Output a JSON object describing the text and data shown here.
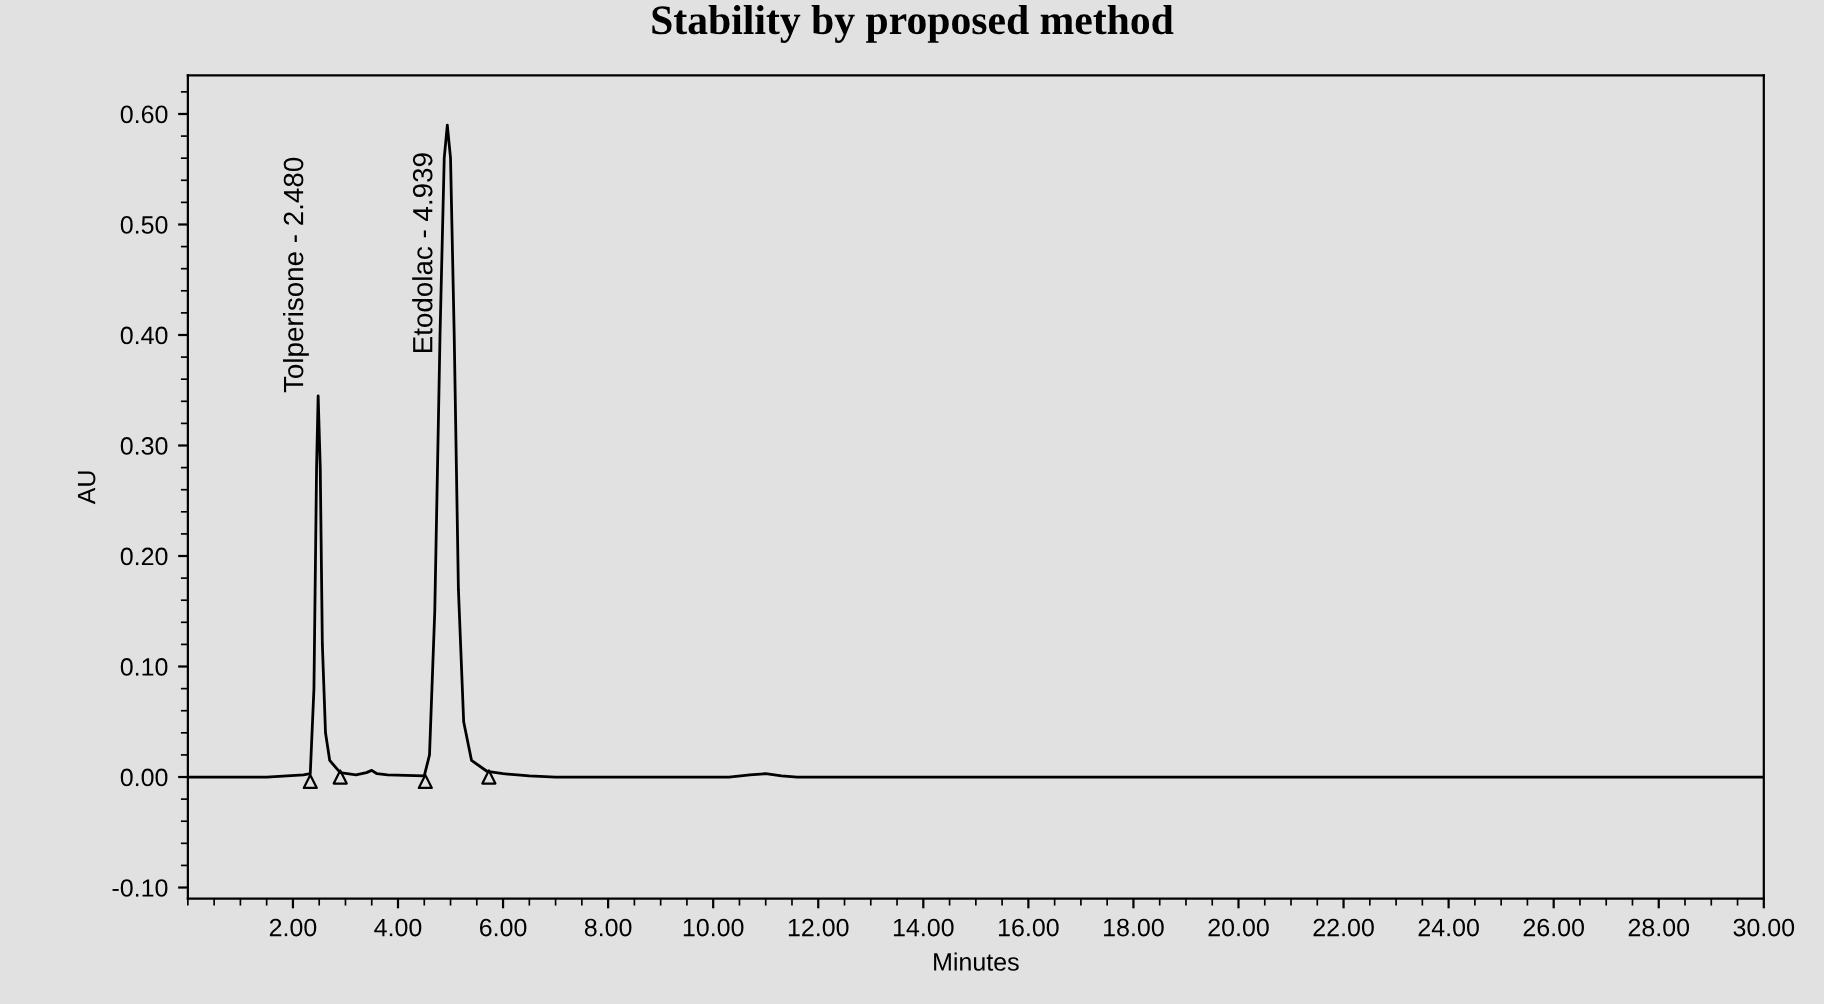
{
  "chart_data": {
    "type": "line",
    "title": "Stability by proposed method",
    "xlabel": "Minutes",
    "ylabel": "AU",
    "xlim": [
      0,
      30
    ],
    "ylim": [
      -0.11,
      0.635
    ],
    "xticks": [
      {
        "value": 2,
        "label": "2.00"
      },
      {
        "value": 4,
        "label": "4.00"
      },
      {
        "value": 6,
        "label": "6.00"
      },
      {
        "value": 8,
        "label": "8.00"
      },
      {
        "value": 10,
        "label": "10.00"
      },
      {
        "value": 12,
        "label": "12.00"
      },
      {
        "value": 14,
        "label": "14.00"
      },
      {
        "value": 16,
        "label": "16.00"
      },
      {
        "value": 18,
        "label": "18.00"
      },
      {
        "value": 20,
        "label": "20.00"
      },
      {
        "value": 22,
        "label": "22.00"
      },
      {
        "value": 24,
        "label": "24.00"
      },
      {
        "value": 26,
        "label": "26.00"
      },
      {
        "value": 28,
        "label": "28.00"
      },
      {
        "value": 30,
        "label": "30.00"
      }
    ],
    "yticks": [
      {
        "value": -0.1,
        "label": "-0.10"
      },
      {
        "value": 0,
        "label": "0.00"
      },
      {
        "value": 0.1,
        "label": "0.10"
      },
      {
        "value": 0.2,
        "label": "0.20"
      },
      {
        "value": 0.3,
        "label": "0.30"
      },
      {
        "value": 0.4,
        "label": "0.40"
      },
      {
        "value": 0.5,
        "label": "0.50"
      },
      {
        "value": 0.6,
        "label": "0.60"
      }
    ],
    "grid": false,
    "legend": false,
    "series": [
      {
        "color": "#000000",
        "x": [
          0,
          1.5,
          2.2,
          2.33,
          2.4,
          2.45,
          2.48,
          2.52,
          2.56,
          2.62,
          2.7,
          2.9,
          3.2,
          3.4,
          3.5,
          3.6,
          3.8,
          4.5,
          4.6,
          4.7,
          4.8,
          4.88,
          4.939,
          5.0,
          5.07,
          5.15,
          5.25,
          5.4,
          5.7,
          6.0,
          6.5,
          7.0,
          10.3,
          10.7,
          11.0,
          11.3,
          11.6,
          30
        ],
        "values": [
          0,
          0,
          0.002,
          0.003,
          0.08,
          0.28,
          0.345,
          0.28,
          0.12,
          0.04,
          0.015,
          0.004,
          0.002,
          0.004,
          0.006,
          0.003,
          0.002,
          0.001,
          0.02,
          0.15,
          0.4,
          0.56,
          0.59,
          0.56,
          0.4,
          0.17,
          0.05,
          0.015,
          0.005,
          0.003,
          0.001,
          0,
          0,
          0.002,
          0.003,
          0.001,
          0,
          0
        ]
      },
      {
        "type": "scatter",
        "color": "#000000",
        "marker": "triangle",
        "x": [
          2.33,
          2.9,
          4.52,
          5.73
        ],
        "values": [
          -0.004,
          0.0,
          -0.004,
          0.0
        ]
      }
    ],
    "annotations": [
      {
        "text": "Tolperisone - 2.480",
        "x": 2.48,
        "y": 0.345
      },
      {
        "text": "Etodolac - 4.939",
        "x": 4.939,
        "y": 0.38
      }
    ]
  }
}
